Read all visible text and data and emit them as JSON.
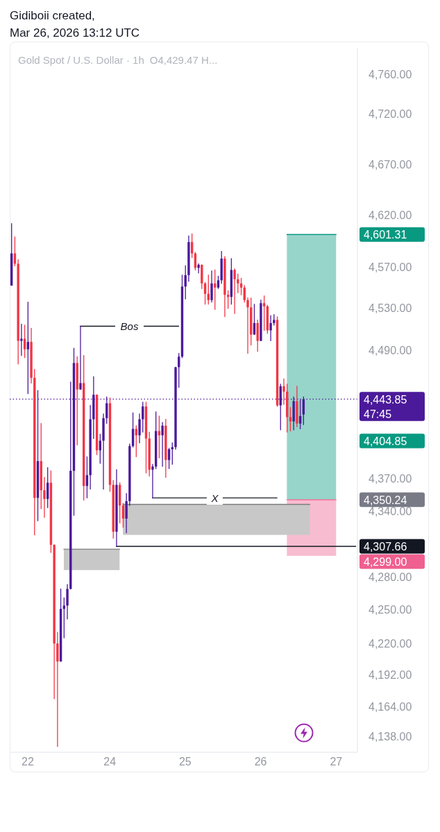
{
  "chart_data": {
    "type": "candlestick",
    "title": "Gold Spot / U.S. Dollar · 1h",
    "subtitle": "O4,429.47 H...",
    "annotations": [
      "Gidiboii created,",
      "Mar 26, 2026 13:12 UTC",
      "4,601.31",
      "4,404.85",
      "4,350.24",
      "4,307.66",
      "4,299.00"
    ],
    "categories": [
      null,
      null,
      null,
      null,
      null,
      "22",
      null,
      null,
      null,
      null,
      null,
      null,
      null,
      null,
      null,
      null,
      null,
      null,
      null,
      null,
      null,
      null,
      null,
      null,
      null,
      null,
      null,
      null,
      null,
      null,
      "24",
      null,
      null,
      null,
      null,
      null,
      null,
      null,
      null,
      null,
      null,
      null,
      null,
      null,
      null,
      null,
      null,
      null,
      null,
      null,
      null,
      null,
      null,
      "25",
      null,
      null,
      null,
      null,
      null,
      null,
      null,
      null,
      null,
      null,
      null,
      null,
      null,
      null,
      null,
      null,
      null,
      null,
      null,
      null,
      null,
      null,
      "26",
      null,
      null,
      null,
      null,
      null,
      null,
      null,
      null,
      null,
      null,
      null,
      null,
      null,
      null,
      null,
      null,
      null,
      null,
      null,
      null,
      null,
      null,
      "27",
      null,
      null,
      null,
      null,
      null,
      null
    ],
    "ohlc": [
      [
        4552,
        4612,
        4552,
        4583
      ],
      [
        4583,
        4599,
        4571,
        4573
      ],
      [
        4573,
        4577,
        4477,
        4499
      ],
      [
        4499,
        4515,
        4485,
        4501
      ],
      [
        4501,
        4514,
        4483,
        4491
      ],
      [
        4491,
        4536,
        4449,
        4498
      ],
      [
        4498,
        4511,
        4459,
        4464
      ],
      [
        4464,
        4472,
        4318,
        4352
      ],
      [
        4352,
        4452,
        4331,
        4386
      ],
      [
        4386,
        4421,
        4342,
        4359
      ],
      [
        4359,
        4371,
        4334,
        4351
      ],
      [
        4351,
        4380,
        4343,
        4366
      ],
      [
        4366,
        4377,
        4302,
        4309
      ],
      [
        4309,
        4309,
        4171,
        4220
      ],
      [
        4220,
        4230,
        4129,
        4204
      ],
      [
        4204,
        4269,
        4204,
        4251
      ],
      [
        4251,
        4261,
        4225,
        4254
      ],
      [
        4254,
        4273,
        4242,
        4269
      ],
      [
        4269,
        4460,
        4269,
        4377
      ],
      [
        4377,
        4492,
        4336,
        4478
      ],
      [
        4478,
        4484,
        4401,
        4453
      ],
      [
        4453,
        4513,
        4453,
        4459
      ],
      [
        4459,
        4485,
        4350,
        4363
      ],
      [
        4363,
        4390,
        4352,
        4373
      ],
      [
        4373,
        4438,
        4360,
        4425
      ],
      [
        4425,
        4465,
        4407,
        4448
      ],
      [
        4448,
        4448,
        4392,
        4396
      ],
      [
        4396,
        4411,
        4384,
        4405
      ],
      [
        4405,
        4430,
        4360,
        4426
      ],
      [
        4426,
        4446,
        4421,
        4440
      ],
      [
        4440,
        4445,
        4358,
        4364
      ],
      [
        4364,
        4368,
        4315,
        4321
      ],
      [
        4321,
        4378,
        4307.66,
        4364
      ],
      [
        4364,
        4366,
        4329,
        4345
      ],
      [
        4345,
        4347,
        4325,
        4333
      ],
      [
        4333,
        4356,
        4320,
        4349
      ],
      [
        4349,
        4402,
        4345,
        4400
      ],
      [
        4400,
        4431,
        4399,
        4416
      ],
      [
        4416,
        4419,
        4390,
        4410
      ],
      [
        4410,
        4430,
        4403,
        4425
      ],
      [
        4425,
        4441,
        4413,
        4437
      ],
      [
        4437,
        4441,
        4375,
        4407
      ],
      [
        4407,
        4413,
        4372,
        4378
      ],
      [
        4378,
        4383,
        4352,
        4381
      ],
      [
        4381,
        4432,
        4379,
        4414
      ],
      [
        4414,
        4428,
        4389,
        4410
      ],
      [
        4410,
        4422,
        4381,
        4419
      ],
      [
        4419,
        4425,
        4371,
        4387
      ],
      [
        4387,
        4398,
        4379,
        4397
      ],
      [
        4397,
        4403,
        4383,
        4399
      ],
      [
        4399,
        4474,
        4397,
        4474
      ],
      [
        4474,
        4487,
        4455,
        4484
      ],
      [
        4484,
        4562,
        4483,
        4551
      ],
      [
        4551,
        4571,
        4539,
        4562
      ],
      [
        4562,
        4600,
        4556,
        4594
      ],
      [
        4594,
        4602,
        4579,
        4583
      ],
      [
        4583,
        4584,
        4567,
        4569
      ],
      [
        4569,
        4573,
        4564,
        4572
      ],
      [
        4572,
        4572,
        4549,
        4554
      ],
      [
        4554,
        4555,
        4534,
        4544
      ],
      [
        4544,
        4562,
        4534,
        4538
      ],
      [
        4538,
        4566,
        4536,
        4554
      ],
      [
        4554,
        4567,
        4529,
        4550
      ],
      [
        4550,
        4561,
        4549,
        4557
      ],
      [
        4557,
        4585,
        4554,
        4578
      ],
      [
        4578,
        4580,
        4522,
        4543
      ],
      [
        4543,
        4547,
        4530,
        4541
      ],
      [
        4541,
        4578,
        4534,
        4567
      ],
      [
        4567,
        4568,
        4525,
        4558
      ],
      [
        4558,
        4563,
        4545,
        4554
      ],
      [
        4554,
        4559,
        4543,
        4550
      ],
      [
        4550,
        4552,
        4536,
        4538
      ],
      [
        4538,
        4540,
        4487,
        4531
      ],
      [
        4531,
        4540,
        4495,
        4505
      ],
      [
        4505,
        4534,
        4505,
        4516
      ],
      [
        4516,
        4519,
        4489,
        4499
      ],
      [
        4499,
        4538,
        4499,
        4535
      ],
      [
        4535,
        4542,
        4509,
        4532
      ],
      [
        4532,
        4533,
        4506,
        4509
      ],
      [
        4509,
        4523,
        4499,
        4516
      ],
      [
        4516,
        4524,
        4514,
        4519
      ],
      [
        4519,
        4522,
        4437,
        4438
      ],
      [
        4438,
        4458,
        4415,
        4456
      ],
      [
        4456,
        4463,
        4439,
        4451
      ],
      [
        4451,
        4458,
        4413,
        4427
      ],
      [
        4427,
        4436,
        4414,
        4423
      ],
      [
        4423,
        4446,
        4415,
        4442
      ],
      [
        4442,
        4456,
        4418,
        4421
      ],
      [
        4421,
        4443,
        4416,
        4428
      ],
      [
        4429.47,
        4446,
        4420,
        4443.85
      ],
      null,
      null,
      null,
      null,
      null,
      null,
      null,
      null,
      null,
      null,
      null,
      null,
      null,
      null,
      null,
      null
    ],
    "colors": [
      "#4b1a9a",
      "#f23645",
      "#f23645",
      "#4b1a9a",
      "#f23645",
      "#4b1a9a",
      "#f23645",
      "#f23645",
      "#4b1a9a",
      "#f23645",
      "#f23645",
      "#4b1a9a",
      "#f23645",
      "#f23645",
      "#f23645",
      "#4b1a9a",
      "#4b1a9a",
      "#4b1a9a",
      "#4b1a9a",
      "#4b1a9a",
      "#f23645",
      "#4b1a9a",
      "#f23645",
      "#4b1a9a",
      "#4b1a9a",
      "#4b1a9a",
      "#f23645",
      "#4b1a9a",
      "#4b1a9a",
      "#4b1a9a",
      "#f23645",
      "#f23645",
      "#4b1a9a",
      "#f23645",
      "#f23645",
      "#4b1a9a",
      "#4b1a9a",
      "#4b1a9a",
      "#f23645",
      "#4b1a9a",
      "#4b1a9a",
      "#f23645",
      "#f23645",
      "#4b1a9a",
      "#4b1a9a",
      "#f23645",
      "#4b1a9a",
      "#f23645",
      "#4b1a9a",
      "#4b1a9a",
      "#4b1a9a",
      "#4b1a9a",
      "#4b1a9a",
      "#4b1a9a",
      "#4b1a9a",
      "#f23645",
      "#f23645",
      "#4b1a9a",
      "#f23645",
      "#f23645",
      "#f23645",
      "#4b1a9a",
      "#f23645",
      "#4b1a9a",
      "#4b1a9a",
      "#f23645",
      "#f23645",
      "#4b1a9a",
      "#f23645",
      "#f23645",
      "#f23645",
      "#f23645",
      "#f23645",
      "#f23645",
      "#4b1a9a",
      "#f23645",
      "#4b1a9a",
      "#f23645",
      "#f23645",
      "#4b1a9a",
      "#4b1a9a",
      "#f23645",
      "#4b1a9a",
      "#f23645",
      "#f23645",
      "#f23645",
      "#4b1a9a",
      "#f23645",
      "#4b1a9a",
      "#4b1a9a",
      null,
      null,
      null,
      null,
      null,
      null,
      null,
      null,
      null,
      null,
      null,
      null,
      null,
      null,
      null,
      null
    ],
    "series": [
      {
        "type": "line",
        "name": "Bos",
        "color": "#131722",
        "values": [
          null,
          null,
          null,
          null,
          null,
          null,
          null,
          null,
          null,
          null,
          null,
          null,
          null,
          null,
          null,
          null,
          null,
          null,
          null,
          null,
          null,
          4513,
          4513,
          4513,
          4513,
          4513,
          4513,
          4513,
          4513,
          4513,
          4513,
          4513,
          4513,
          4513,
          4513,
          4513,
          4513,
          4513,
          4513,
          4513,
          4513,
          4513,
          4513,
          4513,
          4513,
          4513,
          4513,
          4513,
          4513,
          4513,
          4513,
          4513,
          null,
          null,
          null,
          null,
          null,
          null,
          null,
          null,
          null,
          null,
          null,
          null,
          null,
          null,
          null,
          null,
          null,
          null,
          null,
          null,
          null,
          null,
          null,
          null,
          null,
          null,
          null,
          null,
          null,
          null,
          null,
          null,
          null,
          null,
          null,
          null,
          null,
          null,
          null,
          null,
          null,
          null,
          null,
          null,
          null,
          null,
          null,
          null,
          null,
          null,
          null,
          null,
          null,
          null
        ]
      },
      {
        "type": "line",
        "name": "X",
        "color": "#131722",
        "values": [
          null,
          null,
          null,
          null,
          null,
          null,
          null,
          null,
          null,
          null,
          null,
          null,
          null,
          null,
          null,
          null,
          null,
          null,
          null,
          null,
          null,
          null,
          null,
          null,
          null,
          null,
          null,
          null,
          null,
          null,
          null,
          null,
          null,
          null,
          null,
          null,
          null,
          null,
          null,
          null,
          null,
          null,
          null,
          4352,
          4352,
          4352,
          4352,
          4352,
          4352,
          4352,
          4352,
          4352,
          4352,
          4352,
          4352,
          4352,
          4352,
          4352,
          4352,
          4352,
          4352,
          4352,
          4352,
          4352,
          4352,
          4352,
          4352,
          4352,
          4352,
          4352,
          4352,
          4352,
          4352,
          4352,
          4352,
          4352,
          4352,
          4352,
          4352,
          4352,
          4352,
          4352,
          null,
          null,
          null,
          null,
          null,
          null,
          null,
          null,
          null,
          null,
          null,
          null,
          null,
          null,
          null,
          null,
          null,
          null,
          null,
          null,
          null,
          null,
          null,
          null
        ]
      },
      {
        "type": "line",
        "color": "#131722",
        "values": [
          null,
          null,
          null,
          null,
          null,
          null,
          null,
          null,
          null,
          null,
          null,
          null,
          null,
          null,
          null,
          null,
          null,
          null,
          null,
          null,
          null,
          null,
          null,
          null,
          null,
          null,
          null,
          null,
          null,
          null,
          null,
          null,
          4307.66,
          4307.66,
          4307.66,
          4307.66,
          4307.66,
          4307.66,
          4307.66,
          4307.66,
          4307.66,
          4307.66,
          4307.66,
          4307.66,
          4307.66,
          4307.66,
          4307.66,
          4307.66,
          4307.66,
          4307.66,
          4307.66,
          4307.66,
          4307.66,
          4307.66,
          4307.66,
          4307.66,
          4307.66,
          4307.66,
          4307.66,
          4307.66,
          4307.66,
          4307.66,
          4307.66,
          4307.66,
          4307.66,
          4307.66,
          4307.66,
          4307.66,
          4307.66,
          4307.66,
          4307.66,
          4307.66,
          4307.66,
          4307.66,
          4307.66,
          4307.66,
          4307.66,
          4307.66,
          4307.66,
          4307.66,
          4307.66,
          4307.66,
          4307.66,
          4307.66,
          4307.66,
          4307.66,
          4307.66,
          4307.66,
          4307.66,
          4307.66,
          4307.66,
          4307.66,
          4307.66,
          4307.66,
          4307.66,
          4307.66,
          4307.66,
          4307.66,
          4307.66,
          4307.66,
          4307.66,
          4307.66,
          4307.66,
          4307.66,
          4307.66,
          4307.66
        ]
      },
      {
        "type": "line",
        "color": "#089981",
        "values": [
          null,
          null,
          null,
          null,
          null,
          null,
          null,
          null,
          null,
          null,
          null,
          null,
          null,
          null,
          null,
          null,
          null,
          null,
          null,
          null,
          null,
          null,
          null,
          null,
          null,
          null,
          null,
          null,
          null,
          null,
          null,
          null,
          null,
          null,
          null,
          null,
          null,
          null,
          null,
          null,
          null,
          null,
          null,
          null,
          null,
          null,
          null,
          null,
          null,
          null,
          null,
          null,
          null,
          null,
          null,
          null,
          null,
          null,
          null,
          null,
          null,
          null,
          null,
          null,
          null,
          null,
          null,
          null,
          null,
          null,
          null,
          null,
          null,
          null,
          null,
          null,
          null,
          null,
          null,
          null,
          null,
          null,
          null,
          null,
          4601.31,
          4601.31,
          4601.31,
          4601.31,
          4601.31,
          4601.31,
          4601.31,
          4601.31,
          4601.31,
          4601.31,
          4601.31,
          4601.31,
          4601.31,
          4601.31,
          4601.31,
          4601.31,
          null,
          null,
          null,
          null,
          null,
          null
        ],
        "upper": [
          null,
          null,
          null,
          null,
          null,
          null,
          null,
          null,
          null,
          null,
          null,
          null,
          null,
          null,
          null,
          null,
          null,
          null,
          null,
          null,
          null,
          null,
          null,
          null,
          null,
          null,
          null,
          null,
          null,
          null,
          null,
          null,
          null,
          null,
          null,
          null,
          null,
          null,
          null,
          null,
          null,
          null,
          null,
          null,
          null,
          null,
          null,
          null,
          null,
          null,
          null,
          null,
          null,
          null,
          null,
          null,
          null,
          null,
          null,
          null,
          null,
          null,
          null,
          null,
          null,
          null,
          null,
          null,
          null,
          null,
          null,
          null,
          null,
          null,
          null,
          null,
          null,
          null,
          null,
          null,
          null,
          null,
          null,
          null,
          4601.31,
          4601.31,
          4601.31,
          4601.31,
          4601.31,
          4601.31,
          4601.31,
          4601.31,
          4601.31,
          4601.31,
          4601.31,
          4601.31,
          4601.31,
          4601.31,
          4601.31,
          4601.31,
          null,
          null,
          null,
          null,
          null,
          null
        ],
        "lower": [
          null,
          null,
          null,
          null,
          null,
          null,
          null,
          null,
          null,
          null,
          null,
          null,
          null,
          null,
          null,
          null,
          null,
          null,
          null,
          null,
          null,
          null,
          null,
          null,
          null,
          null,
          null,
          null,
          null,
          null,
          null,
          null,
          null,
          null,
          null,
          null,
          null,
          null,
          null,
          null,
          null,
          null,
          null,
          null,
          null,
          null,
          null,
          null,
          null,
          null,
          null,
          null,
          null,
          null,
          null,
          null,
          null,
          null,
          null,
          null,
          null,
          null,
          null,
          null,
          null,
          null,
          null,
          null,
          null,
          null,
          null,
          null,
          null,
          null,
          null,
          null,
          null,
          null,
          null,
          null,
          null,
          null,
          null,
          null,
          4350.24,
          4350.24,
          4350.24,
          4350.24,
          4350.24,
          4350.24,
          4350.24,
          4350.24,
          4350.24,
          4350.24,
          4350.24,
          4350.24,
          4350.24,
          4350.24,
          4350.24,
          4350.24,
          null,
          null,
          null,
          null,
          null,
          null
        ]
      },
      {
        "type": "line",
        "color": "#ef5f8f",
        "values": [
          null,
          null,
          null,
          null,
          null,
          null,
          null,
          null,
          null,
          null,
          null,
          null,
          null,
          null,
          null,
          null,
          null,
          null,
          null,
          null,
          null,
          null,
          null,
          null,
          null,
          null,
          null,
          null,
          null,
          null,
          null,
          null,
          null,
          null,
          null,
          null,
          null,
          null,
          null,
          null,
          null,
          null,
          null,
          null,
          null,
          null,
          null,
          null,
          null,
          null,
          null,
          null,
          null,
          null,
          null,
          null,
          null,
          null,
          null,
          null,
          null,
          null,
          null,
          null,
          null,
          null,
          null,
          null,
          null,
          null,
          null,
          null,
          null,
          null,
          null,
          null,
          null,
          null,
          null,
          null,
          null,
          null,
          null,
          null,
          4350.24,
          4350.24,
          4350.24,
          4350.24,
          4350.24,
          4350.24,
          4350.24,
          4350.24,
          4350.24,
          4350.24,
          4350.24,
          4350.24,
          4350.24,
          4350.24,
          4350.24,
          4350.24,
          null,
          null,
          null,
          null,
          null,
          null
        ],
        "upper": [
          null,
          null,
          null,
          null,
          null,
          null,
          null,
          null,
          null,
          null,
          null,
          null,
          null,
          null,
          null,
          null,
          null,
          null,
          null,
          null,
          null,
          null,
          null,
          null,
          null,
          null,
          null,
          null,
          null,
          null,
          null,
          null,
          null,
          null,
          null,
          null,
          null,
          null,
          null,
          null,
          null,
          null,
          null,
          null,
          null,
          null,
          null,
          null,
          null,
          null,
          null,
          null,
          null,
          null,
          null,
          null,
          null,
          null,
          null,
          null,
          null,
          null,
          null,
          null,
          null,
          null,
          null,
          null,
          null,
          null,
          null,
          null,
          null,
          null,
          null,
          null,
          null,
          null,
          null,
          null,
          null,
          null,
          null,
          null,
          4350.24,
          4350.24,
          4350.24,
          4350.24,
          4350.24,
          4350.24,
          4350.24,
          4350.24,
          4350.24,
          4350.24,
          4350.24,
          4350.24,
          4350.24,
          4350.24,
          4350.24,
          4350.24,
          null,
          null,
          null,
          null,
          null,
          null
        ],
        "lower": [
          null,
          null,
          null,
          null,
          null,
          null,
          null,
          null,
          null,
          null,
          null,
          null,
          null,
          null,
          null,
          null,
          null,
          null,
          null,
          null,
          null,
          null,
          null,
          null,
          null,
          null,
          null,
          null,
          null,
          null,
          null,
          null,
          null,
          null,
          null,
          null,
          null,
          null,
          null,
          null,
          null,
          null,
          null,
          null,
          null,
          null,
          null,
          null,
          null,
          null,
          null,
          null,
          null,
          null,
          null,
          null,
          null,
          null,
          null,
          null,
          null,
          null,
          null,
          null,
          null,
          null,
          null,
          null,
          null,
          null,
          null,
          null,
          null,
          null,
          null,
          null,
          null,
          null,
          null,
          null,
          null,
          null,
          null,
          null,
          4299,
          4299,
          4299,
          4299,
          4299,
          4299,
          4299,
          4299,
          4299,
          4299,
          4299,
          4299,
          4299,
          4299,
          4299,
          4299,
          null,
          null,
          null,
          null,
          null,
          null
        ]
      },
      {
        "type": "line",
        "color": "#7b7b7b",
        "values": [
          null,
          null,
          null,
          null,
          null,
          null,
          null,
          null,
          null,
          null,
          null,
          null,
          null,
          null,
          null,
          null,
          null,
          null,
          null,
          null,
          null,
          null,
          null,
          null,
          null,
          null,
          null,
          null,
          null,
          null,
          null,
          null,
          null,
          null,
          4346,
          4346,
          4346,
          4346,
          4346,
          4346,
          4346,
          4346,
          4346,
          4346,
          4346,
          4346,
          4346,
          4346,
          4346,
          4346,
          4346,
          4346,
          4346,
          4346,
          4346,
          4346,
          4346,
          4346,
          4346,
          4346,
          4346,
          4346,
          4346,
          4346,
          4346,
          4346,
          4346,
          4346,
          4346,
          4346,
          4346,
          4346,
          4346,
          4346,
          4346,
          4346,
          4346,
          4346,
          4346,
          4346,
          4346,
          4346,
          4346,
          4346,
          4346,
          4346,
          4346,
          4346,
          4346,
          4346,
          4346,
          4346,
          null,
          null,
          null,
          null,
          null,
          null,
          null,
          null,
          null,
          null,
          null,
          null,
          null,
          null
        ],
        "upper": [
          null,
          null,
          null,
          null,
          null,
          null,
          null,
          null,
          null,
          null,
          null,
          null,
          null,
          null,
          null,
          null,
          null,
          null,
          null,
          null,
          null,
          null,
          null,
          null,
          null,
          null,
          null,
          null,
          null,
          null,
          null,
          null,
          null,
          null,
          4346,
          4346,
          4346,
          4346,
          4346,
          4346,
          4346,
          4346,
          4346,
          4346,
          4346,
          4346,
          4346,
          4346,
          4346,
          4346,
          4346,
          4346,
          4346,
          4346,
          4346,
          4346,
          4346,
          4346,
          4346,
          4346,
          4346,
          4346,
          4346,
          4346,
          4346,
          4346,
          4346,
          4346,
          4346,
          4346,
          4346,
          4346,
          4346,
          4346,
          4346,
          4346,
          4346,
          4346,
          4346,
          4346,
          4346,
          4346,
          4346,
          4346,
          4346,
          4346,
          4346,
          4346,
          4346,
          4346,
          4346,
          4346,
          null,
          null,
          null,
          null,
          null,
          null,
          null,
          null,
          null,
          null,
          null,
          null,
          null,
          null
        ],
        "lower": [
          null,
          null,
          null,
          null,
          null,
          null,
          null,
          null,
          null,
          null,
          null,
          null,
          null,
          null,
          null,
          null,
          null,
          null,
          null,
          null,
          null,
          null,
          null,
          null,
          null,
          null,
          null,
          null,
          null,
          null,
          null,
          null,
          null,
          null,
          4318,
          4318,
          4318,
          4318,
          4318,
          4318,
          4318,
          4318,
          4318,
          4318,
          4318,
          4318,
          4318,
          4318,
          4318,
          4318,
          4318,
          4318,
          4318,
          4318,
          4318,
          4318,
          4318,
          4318,
          4318,
          4318,
          4318,
          4318,
          4318,
          4318,
          4318,
          4318,
          4318,
          4318,
          4318,
          4318,
          4318,
          4318,
          4318,
          4318,
          4318,
          4318,
          4318,
          4318,
          4318,
          4318,
          4318,
          4318,
          4318,
          4318,
          4318,
          4318,
          4318,
          4318,
          4318,
          4318,
          4318,
          4318,
          null,
          null,
          null,
          null,
          null,
          null,
          null,
          null,
          null,
          null,
          null,
          null,
          null,
          null
        ]
      },
      {
        "type": "line",
        "color": "#7b7b7b",
        "values": [
          null,
          null,
          null,
          null,
          null,
          null,
          null,
          null,
          null,
          null,
          null,
          null,
          null,
          null,
          null,
          null,
          4305,
          4305,
          4305,
          4305,
          4305,
          4305,
          4305,
          4305,
          4305,
          4305,
          4305,
          4305,
          4305,
          4305,
          4305,
          4305,
          4305,
          4305,
          null,
          null,
          null,
          null,
          null,
          null,
          null,
          null,
          null,
          null,
          null,
          null,
          null,
          null,
          null,
          null,
          null,
          null,
          null,
          null,
          null,
          null,
          null,
          null,
          null,
          null,
          null,
          null,
          null,
          null,
          null,
          null,
          null,
          null,
          null,
          null,
          null,
          null,
          null,
          null,
          null,
          null,
          null,
          null,
          null,
          null,
          null,
          null,
          null,
          null,
          null,
          null,
          null,
          null,
          null,
          null,
          null,
          null,
          null,
          null,
          null,
          null,
          null,
          null,
          null,
          null,
          null,
          null,
          null,
          null,
          null,
          null
        ],
        "upper": [
          null,
          null,
          null,
          null,
          null,
          null,
          null,
          null,
          null,
          null,
          null,
          null,
          null,
          null,
          null,
          null,
          4305,
          4305,
          4305,
          4305,
          4305,
          4305,
          4305,
          4305,
          4305,
          4305,
          4305,
          4305,
          4305,
          4305,
          4305,
          4305,
          4305,
          4305,
          null,
          null,
          null,
          null,
          null,
          null,
          null,
          null,
          null,
          null,
          null,
          null,
          null,
          null,
          null,
          null,
          null,
          null,
          null,
          null,
          null,
          null,
          null,
          null,
          null,
          null,
          null,
          null,
          null,
          null,
          null,
          null,
          null,
          null,
          null,
          null,
          null,
          null,
          null,
          null,
          null,
          null,
          null,
          null,
          null,
          null,
          null,
          null,
          null,
          null,
          null,
          null,
          null,
          null,
          null,
          null,
          null,
          null,
          null,
          null,
          null,
          null,
          null,
          null,
          null,
          null,
          null,
          null,
          null,
          null,
          null,
          null
        ],
        "lower": [
          null,
          null,
          null,
          null,
          null,
          null,
          null,
          null,
          null,
          null,
          null,
          null,
          null,
          null,
          null,
          null,
          4286,
          4286,
          4286,
          4286,
          4286,
          4286,
          4286,
          4286,
          4286,
          4286,
          4286,
          4286,
          4286,
          4286,
          4286,
          4286,
          4286,
          4286,
          null,
          null,
          null,
          null,
          null,
          null,
          null,
          null,
          null,
          null,
          null,
          null,
          null,
          null,
          null,
          null,
          null,
          null,
          null,
          null,
          null,
          null,
          null,
          null,
          null,
          null,
          null,
          null,
          null,
          null,
          null,
          null,
          null,
          null,
          null,
          null,
          null,
          null,
          null,
          null,
          null,
          null,
          null,
          null,
          null,
          null,
          null,
          null,
          null,
          null,
          null,
          null,
          null,
          null,
          null,
          null,
          null,
          null,
          null,
          null,
          null,
          null,
          null,
          null,
          null,
          null,
          null,
          null,
          null,
          null,
          null,
          null
        ]
      }
    ],
    "ylim": [
      4124,
      4786
    ],
    "yticks": [
      {
        "value": 4138,
        "label": "4,138.00"
      },
      {
        "value": 4164,
        "label": "4,164.00"
      },
      {
        "value": 4192,
        "label": "4,192.00"
      },
      {
        "value": 4220,
        "label": "4,220.00"
      },
      {
        "value": 4250,
        "label": "4,250.00"
      },
      {
        "value": 4280,
        "label": "4,280.00"
      },
      {
        "value": 4340,
        "label": "4,340.00"
      },
      {
        "value": 4370,
        "label": "4,370.00"
      },
      {
        "value": 4490,
        "label": "4,490.00"
      },
      {
        "value": 4530,
        "label": "4,530.00"
      },
      {
        "value": 4570,
        "label": "4,570.00"
      },
      {
        "value": 4620,
        "label": "4,620.00"
      },
      {
        "value": 4670,
        "label": "4,670.00"
      },
      {
        "value": 4720,
        "label": "4,720.00"
      },
      {
        "value": 4760,
        "label": "4,760.00"
      }
    ],
    "log": true,
    "ref_lines": [
      {
        "axis": "y",
        "value": 4443.85,
        "label": "4,443.85\n47:45",
        "color": "#4b1a9a",
        "line_style": "dotted"
      }
    ]
  }
}
